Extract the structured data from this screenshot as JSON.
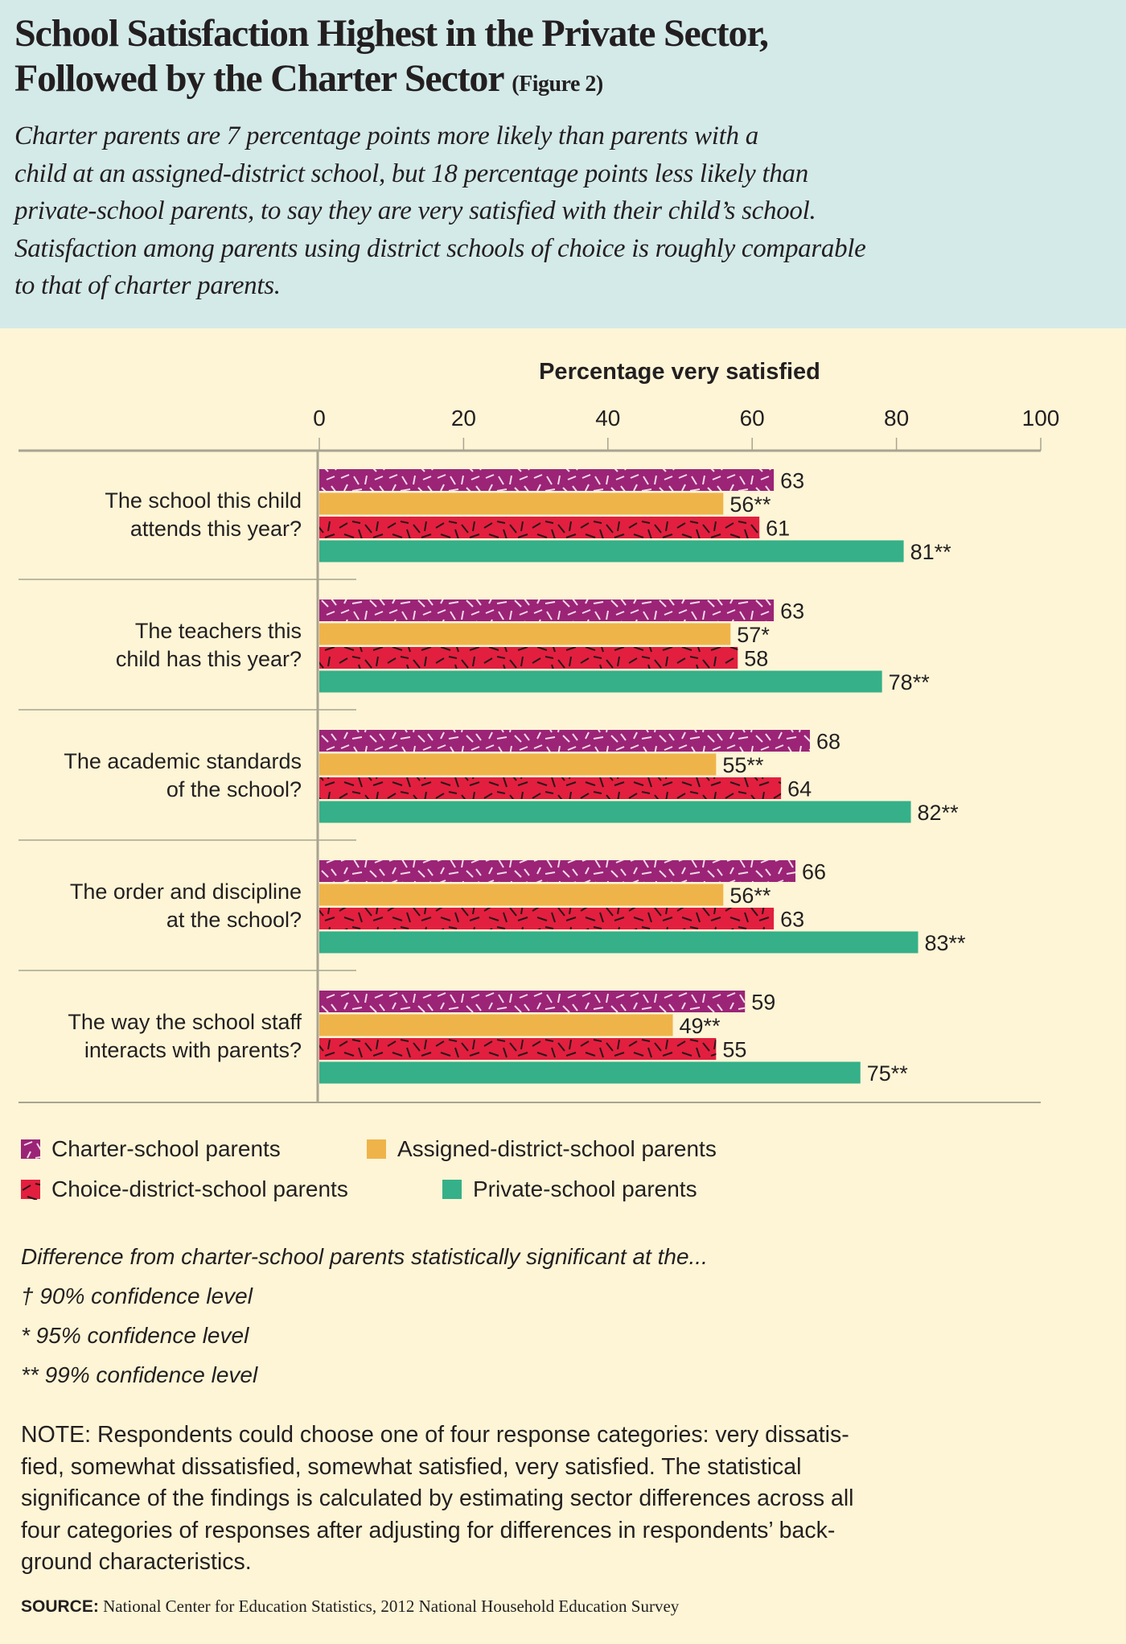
{
  "header": {
    "title_line1": "School Satisfaction Highest in the Private Sector,",
    "title_line2": "Followed by the Charter Sector",
    "figure_label": "(Figure 2)",
    "subtitle_lines": [
      "Charter parents are 7 percentage points more likely than parents with a",
      "child at an assigned-district school, but 18 percentage points less likely than",
      "private-school parents, to say they are very satisfied with their child’s school.",
      "Satisfaction among parents using district schools of choice is roughly comparable",
      "to that of charter parents."
    ]
  },
  "chart_data": {
    "type": "bar",
    "orientation": "horizontal",
    "xlabel": "Percentage very satisfied",
    "xlim": [
      0,
      100
    ],
    "ticks": [
      "0",
      "20",
      "40",
      "60",
      "80",
      "100"
    ],
    "categories": [
      [
        "The school this child",
        "attends this year?"
      ],
      [
        "The teachers this",
        "child has this year?"
      ],
      [
        "The academic standards",
        "of the school?"
      ],
      [
        "The order and discipline",
        "at the school?"
      ],
      [
        "The way the school staff",
        "interacts with parents?"
      ]
    ],
    "series": [
      {
        "name": "Charter-school parents",
        "color": "#9b2477",
        "pattern": "light-dashes",
        "values": [
          63,
          63,
          68,
          66,
          59
        ],
        "labels": [
          "63",
          "63",
          "68",
          "66",
          "59"
        ]
      },
      {
        "name": "Assigned-district-school parents",
        "color": "#efb449",
        "pattern": "solid",
        "values": [
          56,
          57,
          55,
          56,
          49
        ],
        "labels": [
          "56**",
          "57*",
          "55**",
          "56**",
          "49**"
        ]
      },
      {
        "name": "Choice-district-school parents",
        "color": "#e21f3f",
        "pattern": "dark-dashes",
        "values": [
          61,
          58,
          64,
          63,
          55
        ],
        "labels": [
          "61",
          "58",
          "64",
          "63",
          "55"
        ]
      },
      {
        "name": "Private-school parents",
        "color": "#35b088",
        "pattern": "solid",
        "values": [
          81,
          78,
          82,
          83,
          75
        ],
        "labels": [
          "81**",
          "78**",
          "82**",
          "83**",
          "75**"
        ]
      }
    ],
    "legend": "bottom-left",
    "grid": false
  },
  "significance": {
    "intro": "Difference from charter-school parents statistically significant at the...",
    "levels": [
      "† 90% confidence level",
      "* 95% confidence level",
      "** 99% confidence level"
    ]
  },
  "note_lines": [
    "NOTE: Respondents could choose one of four response categories: very dissatis-",
    "fied, somewhat dissatisfied, somewhat satisfied, very satisfied. The statistical",
    "significance of the findings is calculated by estimating sector differences across all",
    "four categories of responses after adjusting for differences in respondents’ back-",
    "ground characteristics."
  ],
  "source": {
    "label": "SOURCE:",
    "text": " National Center for Education Statistics, 2012 National Household Education Survey"
  }
}
